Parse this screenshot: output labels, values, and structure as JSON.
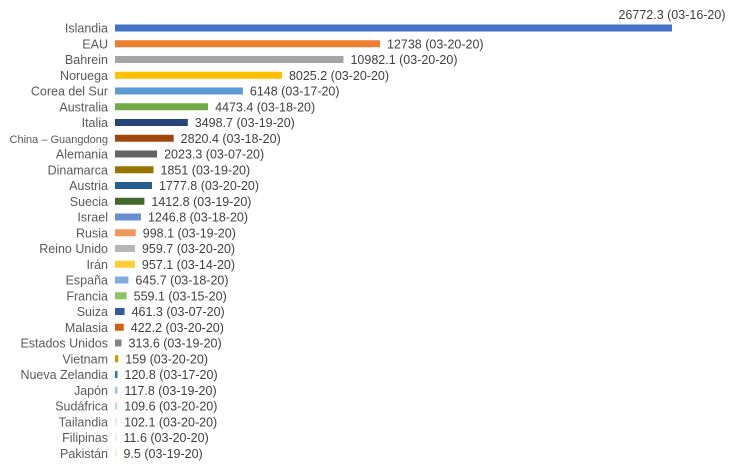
{
  "chart_data": {
    "type": "bar",
    "orientation": "horizontal",
    "title": "",
    "xlabel": "",
    "ylabel": "",
    "grid": false,
    "legend": "none",
    "xlim": [
      0,
      26772.3
    ],
    "categories": [
      "Islandia",
      "EAU",
      "Bahrein",
      "Noruega",
      "Corea del Sur",
      "Australia",
      "Italia",
      "China – Guangdong",
      "Alemania",
      "Dinamarca",
      "Austria",
      "Suecia",
      "Israel",
      "Rusia",
      "Reino Unido",
      "Irán",
      "España",
      "Francia",
      "Suiza",
      "Malasia",
      "Estados Unidos",
      "Vietnam",
      "Nueva Zelandia",
      "Japón",
      "Sudáfrica",
      "Tailandia",
      "Filipinas",
      "Pakistán"
    ],
    "values": [
      26772.3,
      12738,
      10982.1,
      8025.2,
      6148,
      4473.4,
      3498.7,
      2820.4,
      2023.3,
      1851,
      1777.8,
      1412.8,
      1246.8,
      998.1,
      959.7,
      957.1,
      645.7,
      559.1,
      461.3,
      422.2,
      313.6,
      159,
      120.8,
      117.8,
      109.6,
      102.1,
      11.6,
      9.5
    ],
    "data_labels": [
      "26772.3 (03-16-20)",
      "12738 (03-20-20)",
      "10982.1 (03-20-20)",
      "8025.2 (03-20-20)",
      "6148 (03-17-20)",
      "4473.4 (03-18-20)",
      "3498.7 (03-19-20)",
      "2820.4 (03-18-20)",
      "2023.3 (03-07-20)",
      "1851 (03-19-20)",
      "1777.8 (03-20-20)",
      "1412.8 (03-19-20)",
      "1246.8 (03-18-20)",
      "998.1 (03-19-20)",
      "959.7 (03-20-20)",
      "957.1 (03-14-20)",
      "645.7 (03-18-20)",
      "559.1 (03-15-20)",
      "461.3 (03-07-20)",
      "422.2 (03-20-20)",
      "313.6 (03-19-20)",
      "159 (03-20-20)",
      "120.8 (03-17-20)",
      "117.8 (03-19-20)",
      "109.6 (03-20-20)",
      "102.1 (03-20-20)",
      "11.6 (03-20-20)",
      "9.5 (03-19-20)"
    ],
    "colors": [
      "#4472C4",
      "#ED7D31",
      "#A5A5A5",
      "#FFC000",
      "#5B9BD5",
      "#70AD47",
      "#264478",
      "#9E480E",
      "#636363",
      "#997300",
      "#255E91",
      "#43682B",
      "#698ED0",
      "#F1975A",
      "#B7B7B7",
      "#FFCD33",
      "#7CAFDD",
      "#8CC168",
      "#335AA1",
      "#D26012",
      "#848484",
      "#CC9A00",
      "#2E75B6",
      "#99C3E8",
      "#BDD7EE",
      "#E2F0D9",
      "#DEEBF7",
      "#FBE5D6"
    ]
  }
}
